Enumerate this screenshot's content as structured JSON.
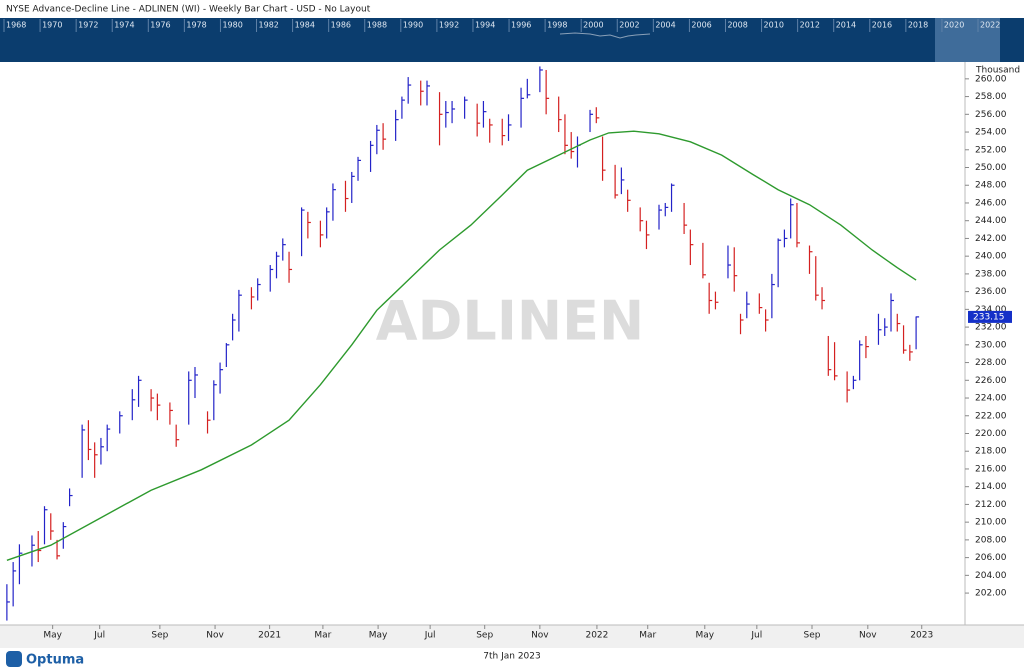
{
  "header": {
    "title": "NYSE  Advance-Decline Line - ADLINEN (WI) - Weekly Bar Chart - USD - No Layout"
  },
  "overview": {
    "years": [
      "1968",
      "1970",
      "1972",
      "1974",
      "1976",
      "1978",
      "1980",
      "1982",
      "1984",
      "1986",
      "1988",
      "1990",
      "1992",
      "1994",
      "1996",
      "1998",
      "2000",
      "2002",
      "2004",
      "2006",
      "2008",
      "2010",
      "2012",
      "2014",
      "2016",
      "2018",
      "2020",
      "2022"
    ]
  },
  "chart_data": {
    "type": "ohlc",
    "watermark": "ADLINEN",
    "y_unit": "Thousand",
    "up_color": "#2323c8",
    "down_color": "#d42020",
    "x": [
      0,
      1,
      2,
      4,
      5,
      6,
      7,
      8,
      9,
      10,
      12,
      13,
      14,
      15,
      16,
      18,
      20,
      21,
      23,
      24,
      26,
      27,
      29,
      30,
      32,
      33,
      34,
      35,
      36,
      37,
      39,
      40,
      42,
      43,
      44,
      45,
      47,
      48,
      50,
      51,
      52,
      54,
      55,
      56,
      58,
      59,
      60,
      62,
      63,
      64,
      66,
      67,
      69,
      70,
      71,
      73,
      75,
      76,
      77,
      79,
      80,
      82,
      83,
      85,
      86,
      88,
      89,
      90,
      91,
      93,
      94,
      95,
      97,
      98,
      99,
      101,
      102,
      104,
      105,
      106,
      108,
      109,
      111,
      112,
      113,
      115,
      116,
      117,
      118,
      120,
      121,
      122,
      123,
      124,
      125,
      126,
      128,
      129,
      130,
      131,
      132,
      134,
      135,
      136,
      137,
      139,
      140,
      141,
      142,
      143,
      144,
      145
    ],
    "high": [
      203,
      205.5,
      207.5,
      208.5,
      209,
      211.8,
      211,
      208,
      210,
      213.8,
      221,
      221.5,
      219,
      219.5,
      221,
      222.5,
      225,
      226.5,
      225,
      224.5,
      223.5,
      221,
      227,
      227.5,
      222.5,
      226,
      228,
      230.2,
      233.5,
      236.2,
      236.5,
      237.5,
      239,
      240.5,
      242,
      240.5,
      245.5,
      245,
      244,
      245.5,
      248.2,
      248.5,
      249.5,
      251.2,
      253,
      254.8,
      255,
      256.5,
      258,
      260.2,
      259.8,
      259.8,
      258.5,
      257.5,
      257.5,
      258,
      257.2,
      257.5,
      255.5,
      255.5,
      256,
      259,
      260,
      261.4,
      261,
      258,
      256,
      254,
      253.5,
      256.5,
      256.8,
      253.5,
      250.3,
      250,
      247.5,
      245.5,
      244,
      245.8,
      246,
      248.2,
      246,
      243,
      241.5,
      237,
      236,
      241.2,
      241,
      233.5,
      236,
      235.8,
      234,
      238,
      242,
      243,
      246.5,
      246,
      241.2,
      240,
      236.5,
      231,
      230.3,
      227,
      226.5,
      230.5,
      231,
      233.5,
      233,
      235.8,
      233.5,
      232.2,
      230,
      233.2
    ],
    "low": [
      198.9,
      200.5,
      203,
      205,
      205.5,
      207.5,
      208,
      205.8,
      207,
      211.8,
      215,
      217,
      215,
      216.5,
      218,
      220,
      221.5,
      223,
      222.5,
      221.5,
      221,
      218.5,
      221,
      224,
      220,
      221.5,
      224.5,
      227.5,
      230.5,
      231.5,
      234,
      235,
      236,
      237.5,
      239.5,
      237,
      240,
      242,
      241,
      242,
      244,
      245,
      246,
      248.5,
      249.5,
      251.5,
      252,
      253,
      255.5,
      257.2,
      257,
      257,
      252.5,
      254.5,
      255,
      255.5,
      253.5,
      254.5,
      252.8,
      252.5,
      253,
      254.5,
      257.8,
      258.5,
      256,
      254,
      251.5,
      251,
      250,
      254,
      255,
      248.5,
      246.5,
      247,
      245,
      242.8,
      240.8,
      243,
      244.5,
      245,
      242.5,
      239,
      237.5,
      233.5,
      234,
      237.5,
      236,
      231.2,
      233,
      233.5,
      231.5,
      233,
      236.5,
      241,
      242,
      241,
      238,
      235,
      234,
      226.5,
      226,
      223.5,
      225,
      226,
      228.5,
      230,
      231,
      231.5,
      231.5,
      229,
      228.2,
      229.5
    ],
    "close": [
      201,
      204.5,
      206.5,
      207.4,
      206.8,
      211.4,
      209,
      206.2,
      209.5,
      213,
      220.4,
      218.2,
      217.6,
      218.5,
      220.5,
      222,
      223.8,
      226,
      224,
      223.2,
      222.6,
      219.3,
      226,
      226.6,
      221.5,
      225.5,
      227.2,
      230,
      232.8,
      235.6,
      235.4,
      236.8,
      238.5,
      240,
      241.3,
      238.5,
      245.2,
      243.8,
      242.4,
      245,
      247.5,
      246.5,
      249,
      250.8,
      252.5,
      254.2,
      253.2,
      255.4,
      257.6,
      259.3,
      258.6,
      259.2,
      256,
      256.2,
      256.6,
      257.6,
      255,
      256.3,
      254.8,
      253.6,
      254.8,
      257.8,
      258.2,
      261,
      257.8,
      255.4,
      252.5,
      251.8,
      252.5,
      256,
      255.6,
      249.7,
      246.9,
      248.6,
      246.3,
      244,
      242.4,
      245.2,
      245.5,
      248,
      243.5,
      241.3,
      237.9,
      235,
      234.8,
      239,
      237.8,
      232.8,
      234.6,
      234.2,
      232.8,
      236.8,
      241.8,
      242,
      245.8,
      241.5,
      240.5,
      235.6,
      235,
      227.2,
      226.5,
      224.9,
      226,
      230,
      229.8,
      231.7,
      232,
      235,
      232.4,
      229.4,
      229.2,
      233.15
    ],
    "moving_average": {
      "color": "#2e9a2e",
      "x": [
        0,
        7,
        15,
        23,
        31,
        39,
        45,
        50,
        55,
        59,
        64,
        69,
        74,
        79,
        83,
        88,
        93,
        96,
        100,
        104,
        109,
        114,
        119,
        123,
        128,
        133,
        138,
        142,
        145
      ],
      "values": [
        205.7,
        207.4,
        210.5,
        213.6,
        215.9,
        218.7,
        221.5,
        225.5,
        230,
        233.9,
        237.3,
        240.7,
        243.5,
        246.9,
        249.7,
        251.4,
        253.1,
        253.9,
        254.1,
        253.8,
        252.9,
        251.4,
        249.2,
        247.5,
        245.8,
        243.5,
        240.7,
        238.7,
        237.3
      ]
    },
    "xlim": [
      -0.3,
      152.8
    ],
    "xticks": [
      {
        "value": 7.3,
        "label": "May"
      },
      {
        "value": 14.8,
        "label": "Jul"
      },
      {
        "value": 24.4,
        "label": "Sep"
      },
      {
        "value": 33.2,
        "label": "Nov"
      },
      {
        "value": 41.9,
        "label": "2021"
      },
      {
        "value": 50.4,
        "label": "Mar"
      },
      {
        "value": 59.2,
        "label": "May"
      },
      {
        "value": 67.5,
        "label": "Jul"
      },
      {
        "value": 76.2,
        "label": "Sep"
      },
      {
        "value": 85,
        "label": "Nov"
      },
      {
        "value": 94.1,
        "label": "2022"
      },
      {
        "value": 102.2,
        "label": "Mar"
      },
      {
        "value": 111.3,
        "label": "May"
      },
      {
        "value": 119.6,
        "label": "Jul"
      },
      {
        "value": 128.4,
        "label": "Sep"
      },
      {
        "value": 137.3,
        "label": "Nov"
      },
      {
        "value": 145.9,
        "label": "2023"
      }
    ],
    "ylim": [
      198.4,
      261.9
    ],
    "yticks": [
      {
        "value": 202,
        "label": "202.00"
      },
      {
        "value": 204,
        "label": "204.00"
      },
      {
        "value": 206,
        "label": "206.00"
      },
      {
        "value": 208,
        "label": "208.00"
      },
      {
        "value": 210,
        "label": "210.00"
      },
      {
        "value": 212,
        "label": "212.00"
      },
      {
        "value": 214,
        "label": "214.00"
      },
      {
        "value": 216,
        "label": "216.00"
      },
      {
        "value": 218,
        "label": "218.00"
      },
      {
        "value": 220,
        "label": "220.00"
      },
      {
        "value": 222,
        "label": "222.00"
      },
      {
        "value": 224,
        "label": "224.00"
      },
      {
        "value": 226,
        "label": "226.00"
      },
      {
        "value": 228,
        "label": "228.00"
      },
      {
        "value": 230,
        "label": "230.00"
      },
      {
        "value": 232,
        "label": "232.00"
      },
      {
        "value": 234,
        "label": "234.00"
      },
      {
        "value": 236,
        "label": "236.00"
      },
      {
        "value": 238,
        "label": "238.00"
      },
      {
        "value": 240,
        "label": "240.00"
      },
      {
        "value": 242,
        "label": "242.00"
      },
      {
        "value": 244,
        "label": "244.00"
      },
      {
        "value": 246,
        "label": "246.00"
      },
      {
        "value": 248,
        "label": "248.00"
      },
      {
        "value": 250,
        "label": "250.00"
      },
      {
        "value": 252,
        "label": "252.00"
      },
      {
        "value": 254,
        "label": "254.00"
      },
      {
        "value": 256,
        "label": "256.00"
      },
      {
        "value": 258,
        "label": "258.00"
      },
      {
        "value": 260,
        "label": "260.00"
      }
    ]
  },
  "footer": {
    "brand": "Optuma",
    "date": "7th Jan 2023"
  }
}
